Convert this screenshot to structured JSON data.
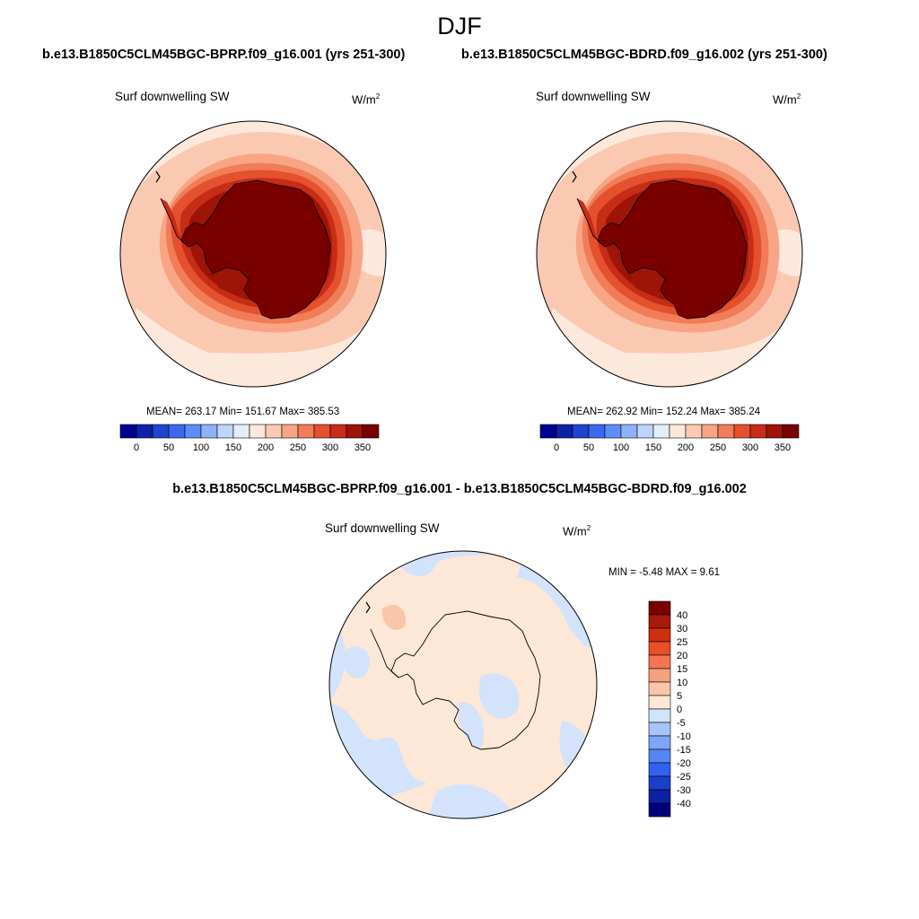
{
  "figure": {
    "season": "DJF",
    "colors": {
      "abs_scale": [
        "#00008f",
        "#0d23a5",
        "#1f45cf",
        "#3969ec",
        "#5d8df6",
        "#8fb2f7",
        "#bed5fa",
        "#e4eefb",
        "#fde8dc",
        "#fbc9b2",
        "#f7a585",
        "#f17c57",
        "#e3512f",
        "#c72c16",
        "#9e1406",
        "#7a0000"
      ],
      "diff_scale": [
        "#00007a",
        "#0c21a2",
        "#1a3fcb",
        "#2f62f0",
        "#5585f6",
        "#7ea5f6",
        "#a7c4f8",
        "#d2e3fb",
        "#fde7d7",
        "#fbc5aa",
        "#f7a07c",
        "#f37650",
        "#ec4e25",
        "#cf2f0c",
        "#a8190a",
        "#7a0000"
      ],
      "ocean_base": "#fcd5c2",
      "land_outline": "#000000"
    }
  },
  "panels": {
    "left": {
      "case_title": "b.e13.B1850C5CLM45BGC-BPRP.f09_g16.001 (yrs 251-300)",
      "variable": "Surf downwelling SW",
      "units": "W/m",
      "units_exp": "2",
      "stats": "MEAN= 263.17  Min= 151.67  Max= 385.53",
      "mean": 263.17,
      "min": 151.67,
      "max": 385.53
    },
    "right": {
      "case_title": "b.e13.B1850C5CLM45BGC-BDRD.f09_g16.002 (yrs 251-300)",
      "variable": "Surf downwelling SW",
      "units": "W/m",
      "units_exp": "2",
      "stats": "MEAN= 262.92  Min= 152.24  Max= 385.24",
      "mean": 262.92,
      "min": 152.24,
      "max": 385.24
    },
    "diff": {
      "case_title": "b.e13.B1850C5CLM45BGC-BPRP.f09_g16.001 - b.e13.B1850C5CLM45BGC-BDRD.f09_g16.002",
      "variable": "Surf downwelling SW",
      "units": "W/m",
      "units_exp": "2",
      "stats": "MIN =  -5.48 MAX =   9.61",
      "min": -5.48,
      "max": 9.61
    }
  },
  "colorbars": {
    "abs_labels": [
      "0",
      "50",
      "100",
      "150",
      "200",
      "250",
      "300",
      "350"
    ],
    "diff_labels": [
      "40",
      "30",
      "25",
      "20",
      "15",
      "10",
      "5",
      "0",
      "-5",
      "-10",
      "-15",
      "-20",
      "-25",
      "-30",
      "-40"
    ]
  }
}
